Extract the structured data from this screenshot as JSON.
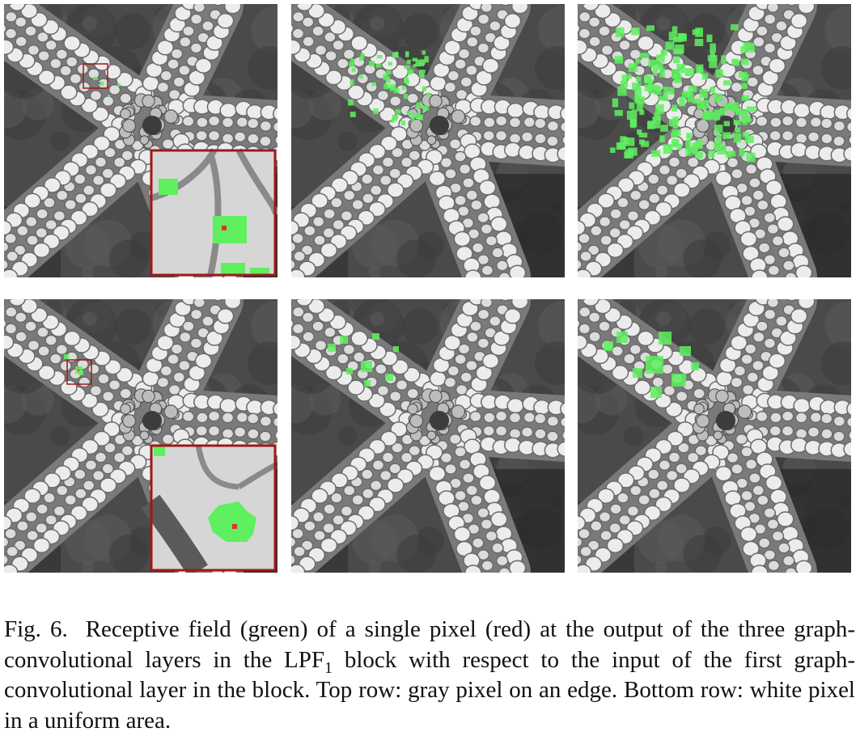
{
  "figure": {
    "panels": [
      {
        "row": "top",
        "layer": 1,
        "pixel_type": "gray pixel on an edge",
        "has_zoom_inset": true
      },
      {
        "row": "top",
        "layer": 2,
        "pixel_type": "gray pixel on an edge",
        "has_zoom_inset": false
      },
      {
        "row": "top",
        "layer": 3,
        "pixel_type": "gray pixel on an edge",
        "has_zoom_inset": false
      },
      {
        "row": "bottom",
        "layer": 1,
        "pixel_type": "white pixel in a uniform area",
        "has_zoom_inset": true
      },
      {
        "row": "bottom",
        "layer": 2,
        "pixel_type": "white pixel in a uniform area",
        "has_zoom_inset": false
      },
      {
        "row": "bottom",
        "layer": 3,
        "pixel_type": "white pixel in a uniform area",
        "has_zoom_inset": false
      }
    ],
    "colors": {
      "receptive_field": "#5ef05e",
      "target_pixel": "#e03030",
      "inset_border": "#a01818"
    }
  },
  "caption": {
    "label": "Fig. 6.",
    "text_before_sub": "Receptive field (green) of a single pixel (red) at the output of the three graph-convolutional layers in the LPF",
    "sub": "1",
    "text_after_sub": " block with respect to the input of the first graph-convolutional layer in the block. Top row: gray pixel on an edge. Bottom row: white pixel in a uniform area."
  }
}
